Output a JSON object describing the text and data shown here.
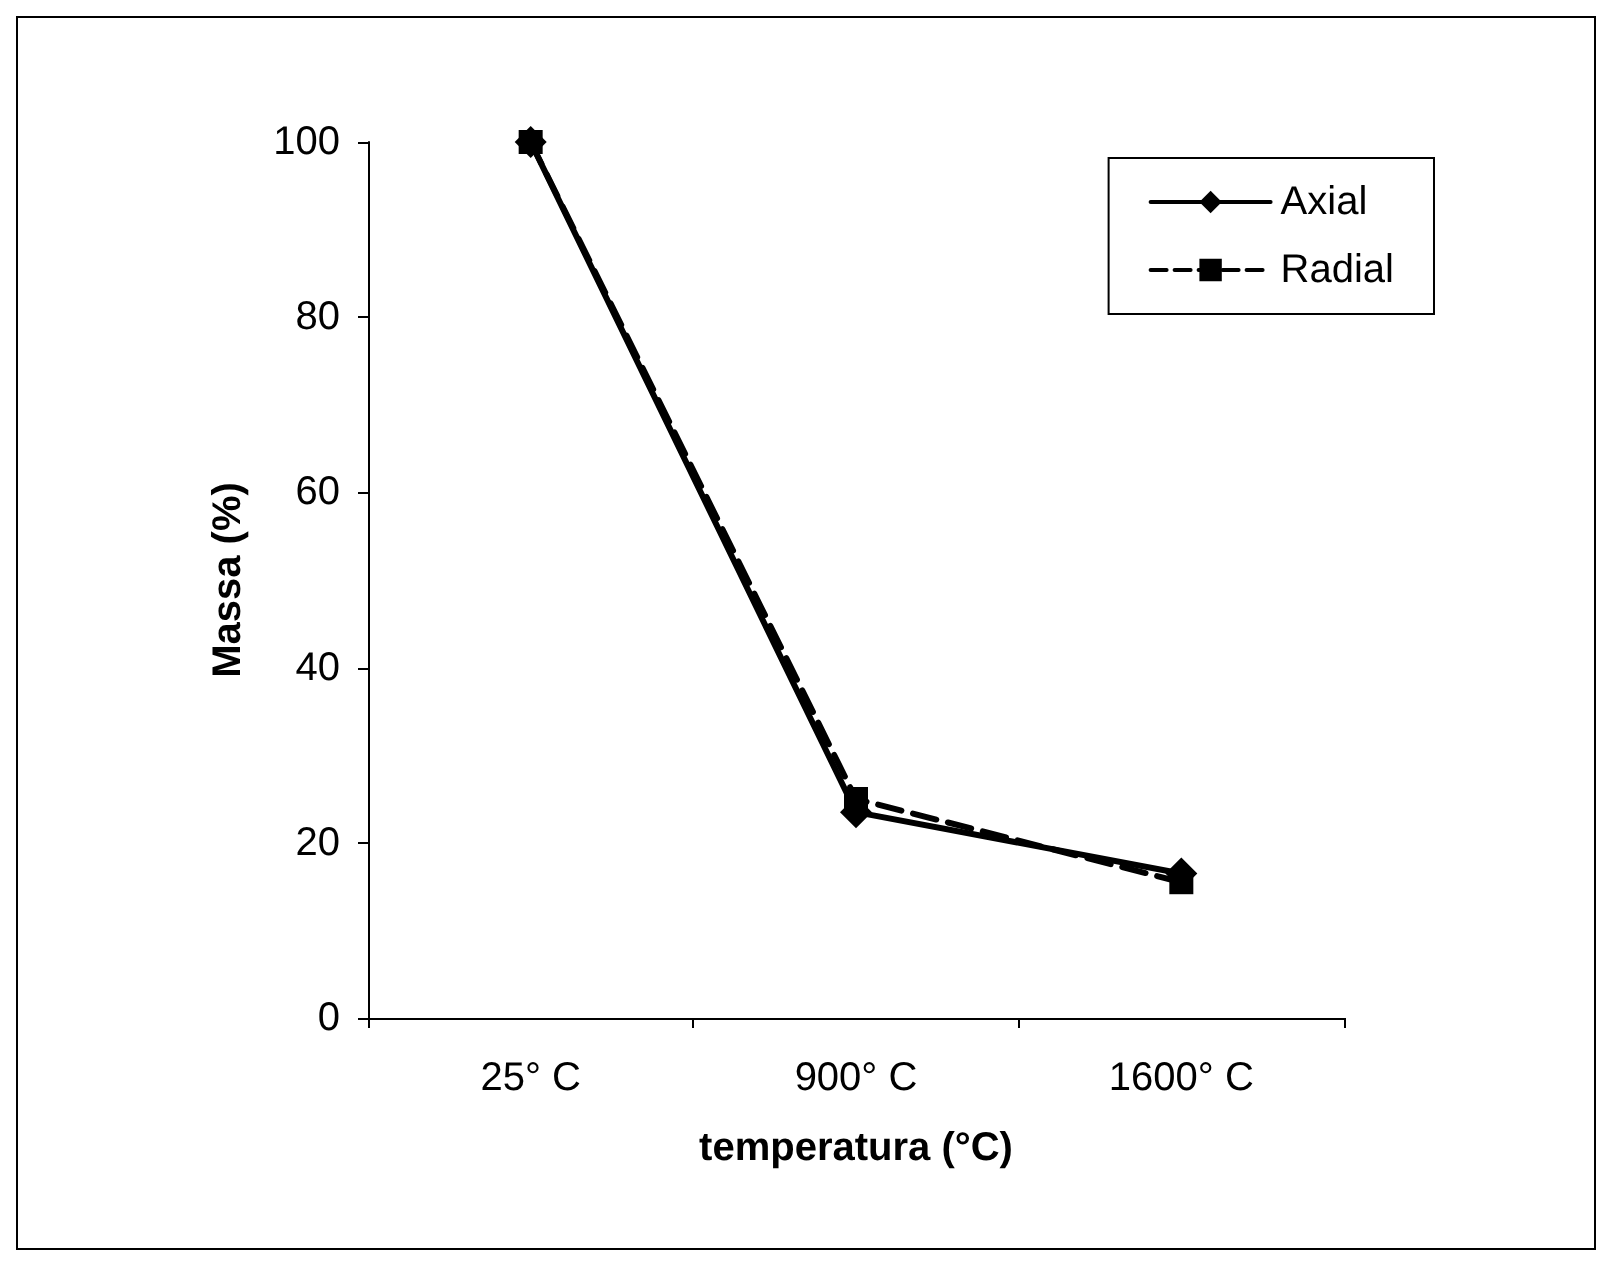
{
  "chart_data": {
    "type": "line",
    "xlabel": "temperatura (°C)",
    "ylabel": "Massa (%)",
    "categories": [
      "25° C",
      "900° C",
      "1600° C"
    ],
    "series": [
      {
        "name": "Axial",
        "color": "#000000",
        "values": [
          100,
          23.5,
          16.5
        ],
        "marker": "diamond",
        "line_style": "solid"
      },
      {
        "name": "Radial",
        "color": "#000000",
        "values": [
          100,
          25,
          15.5
        ],
        "marker": "square",
        "line_style": "dashed"
      }
    ],
    "ylim": [
      0,
      100
    ],
    "yticks": [
      0,
      20,
      40,
      60,
      80,
      100
    ],
    "grid": false,
    "legend": "top right"
  }
}
